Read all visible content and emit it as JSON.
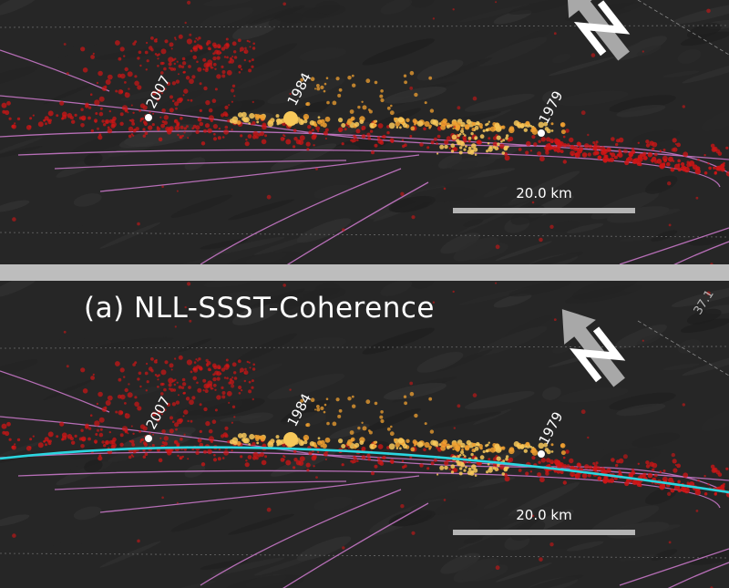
{
  "colors": {
    "background": "#262626",
    "fault": "#d07bd0",
    "quake_red": "#d01515",
    "quake_orange": "#f0a030",
    "quake_yellow": "#f7c85a",
    "fit_curve": "#2ad6e0",
    "scale_bar": "#b5b5b5",
    "divider": "#bdbdbd"
  },
  "panels": [
    {
      "title": "",
      "show_fit_curve": false,
      "north_arrow": "north-arrow-icon",
      "scale_label": "20.0 km",
      "coordinate_label": "",
      "events": [
        {
          "year": "2007"
        },
        {
          "year": "1984"
        },
        {
          "year": "1979"
        }
      ]
    },
    {
      "title": "(a) NLL-SSST-Coherence",
      "show_fit_curve": true,
      "north_arrow": "north-arrow-icon",
      "scale_label": "20.0 km",
      "coordinate_label": "37.1",
      "events": [
        {
          "year": "2007"
        },
        {
          "year": "1984"
        },
        {
          "year": "1979"
        }
      ]
    }
  ]
}
